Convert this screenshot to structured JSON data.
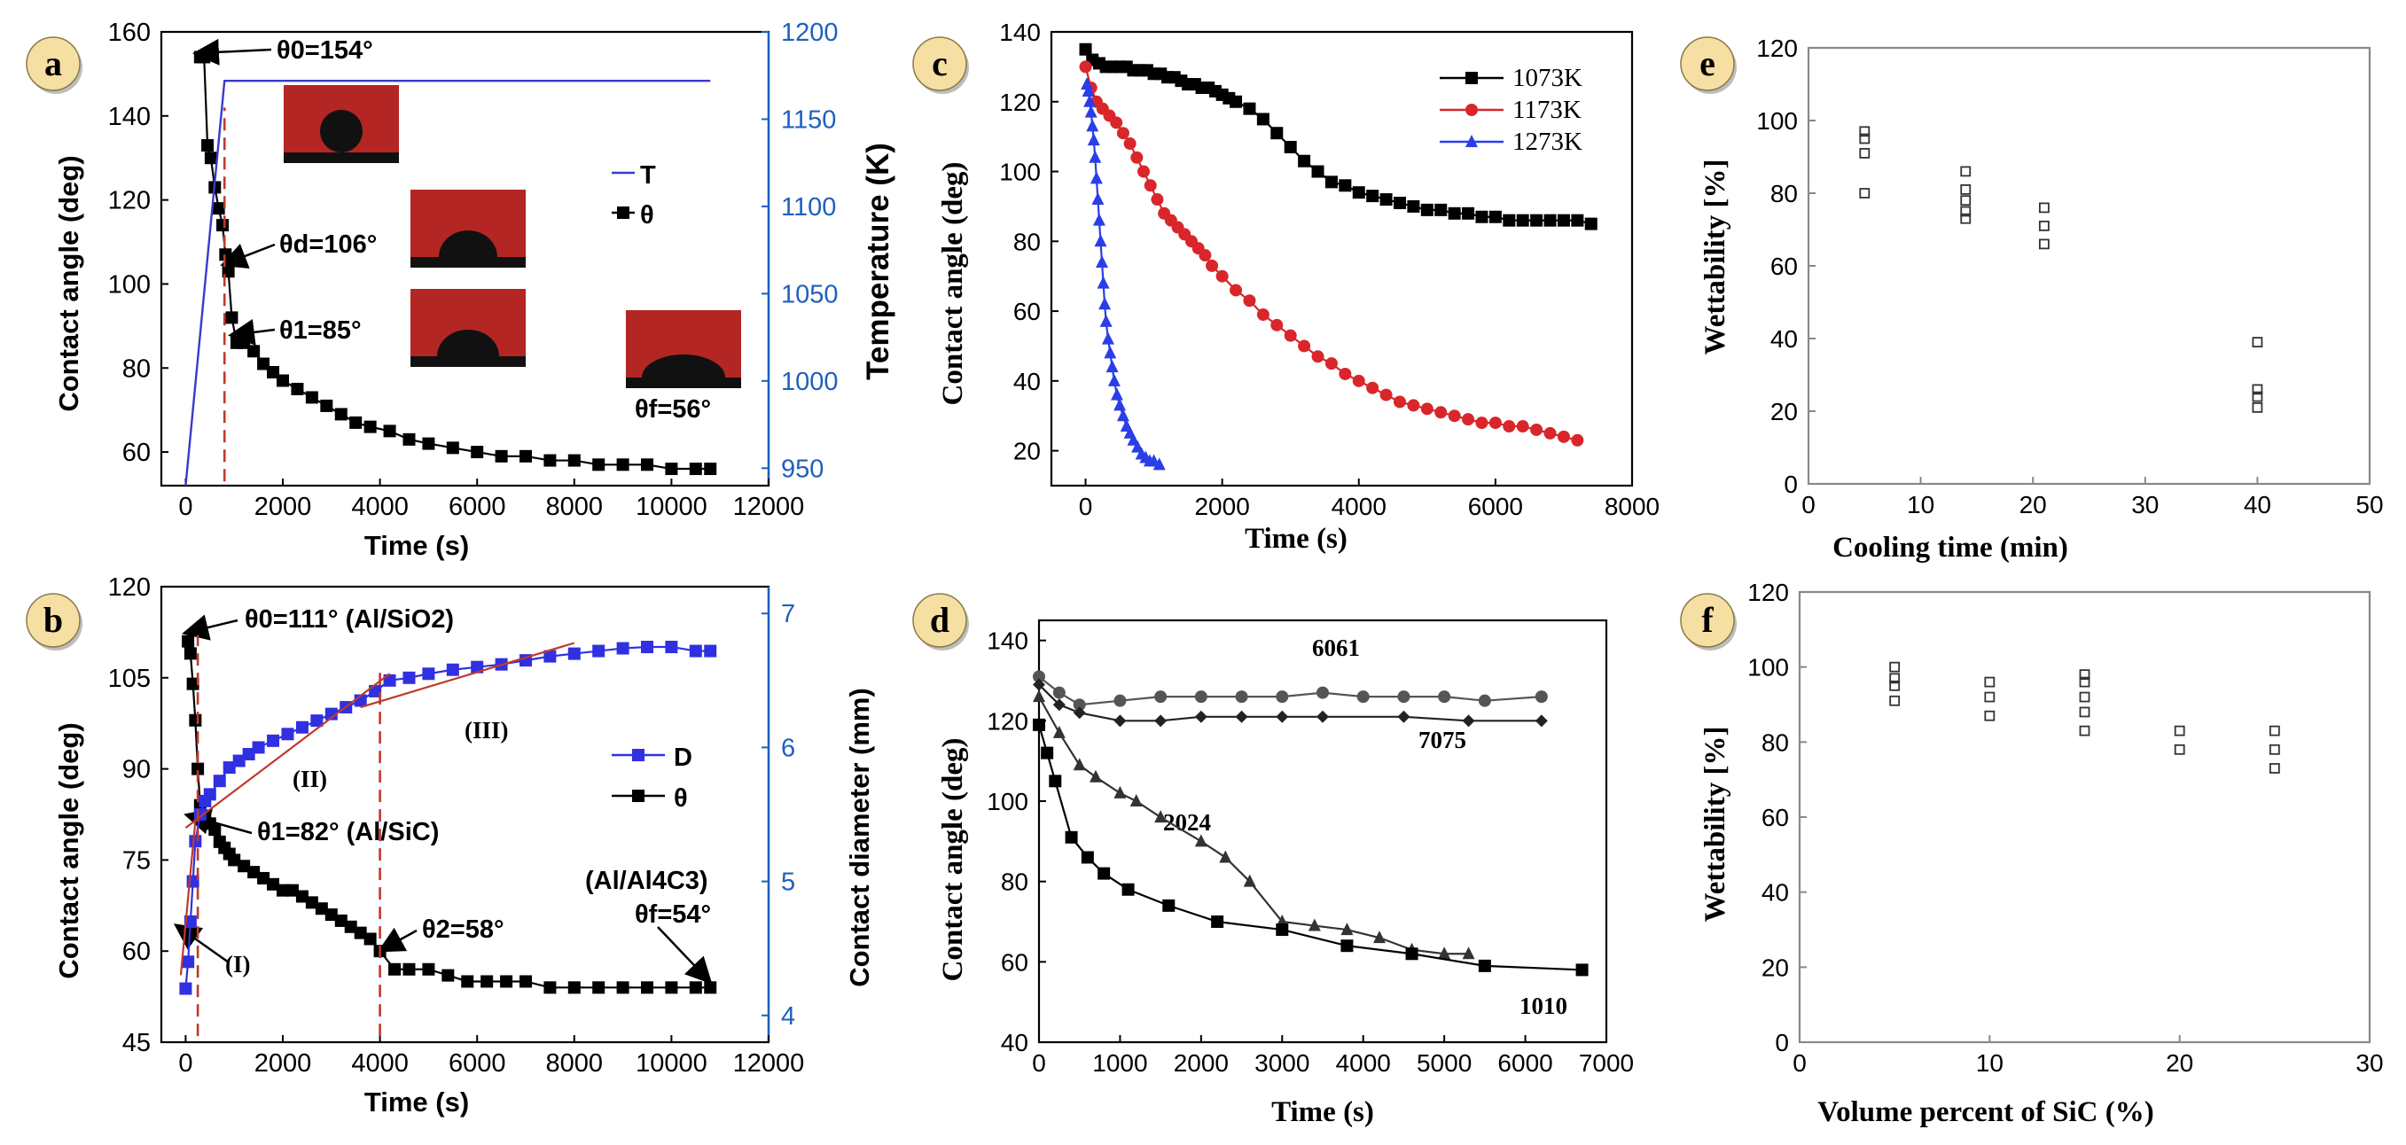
{
  "chart_data": [
    {
      "id": "a",
      "badge": "a",
      "type": "line",
      "xlabel": "Time (s)",
      "ylabel": "Contact angle (deg)",
      "y2label": "Temperature (K)",
      "xlim": [
        -500,
        12000
      ],
      "xticks": [
        0,
        2000,
        4000,
        6000,
        8000,
        10000,
        12000
      ],
      "ylim": [
        52,
        160
      ],
      "yticks": [
        60,
        80,
        100,
        120,
        140,
        160
      ],
      "y2lim": [
        940,
        1200
      ],
      "y2ticks": [
        950,
        1000,
        1050,
        1100,
        1150,
        1200
      ],
      "series": [
        {
          "name": "θ",
          "axis": "left",
          "marker": "square",
          "color": "#000000",
          "x": [
            300,
            380,
            450,
            520,
            600,
            680,
            760,
            820,
            880,
            950,
            1050,
            1200,
            1400,
            1600,
            1800,
            2000,
            2300,
            2600,
            2900,
            3200,
            3500,
            3800,
            4200,
            4600,
            5000,
            5500,
            6000,
            6500,
            7000,
            7500,
            8000,
            8500,
            9000,
            9500,
            10000,
            10500,
            10800
          ],
          "y": [
            154,
            154,
            133,
            130,
            123,
            118,
            114,
            107,
            103,
            92,
            86,
            86,
            84,
            81,
            79,
            77,
            75,
            73,
            71,
            69,
            67,
            66,
            65,
            63,
            62,
            61,
            60,
            59,
            59,
            58,
            58,
            57,
            57,
            57,
            56,
            56,
            56
          ]
        },
        {
          "name": "T",
          "axis": "right",
          "marker": "none",
          "color": "#3a3acb",
          "x": [
            0,
            800,
            10800
          ],
          "y": [
            940,
            1172,
            1172
          ]
        }
      ],
      "legend": [
        "T",
        "θ"
      ],
      "annotations": [
        "θ0=154°",
        "θd=106°",
        "θ1=85°",
        "θf=56°"
      ]
    },
    {
      "id": "b",
      "badge": "b",
      "type": "line",
      "xlabel": "Time (s)",
      "ylabel": "Contact angle (deg)",
      "y2label": "Contact diameter (mm)",
      "xlim": [
        -500,
        12000
      ],
      "xticks": [
        0,
        2000,
        4000,
        6000,
        8000,
        10000,
        12000
      ],
      "ylim": [
        45,
        120
      ],
      "yticks": [
        45,
        60,
        75,
        90,
        105,
        120
      ],
      "y2lim": [
        3.8,
        7.2
      ],
      "y2ticks": [
        4,
        5,
        6,
        7
      ],
      "series": [
        {
          "name": "θ",
          "axis": "left",
          "marker": "square",
          "color": "#000000",
          "x": [
            50,
            100,
            150,
            200,
            250,
            300,
            400,
            500,
            600,
            700,
            800,
            900,
            1000,
            1200,
            1400,
            1600,
            1800,
            2000,
            2200,
            2400,
            2600,
            2800,
            3000,
            3200,
            3400,
            3600,
            3800,
            4000,
            4300,
            4600,
            5000,
            5400,
            5800,
            6200,
            6600,
            7000,
            7500,
            8000,
            8500,
            9000,
            9500,
            10000,
            10500,
            10800
          ],
          "y": [
            111,
            109,
            104,
            98,
            90,
            84,
            82,
            81,
            80,
            78,
            77,
            76,
            75,
            74,
            73,
            72,
            71,
            70,
            70,
            69,
            68,
            67,
            66,
            65,
            64,
            63,
            62,
            60,
            57,
            57,
            57,
            56,
            55,
            55,
            55,
            55,
            54,
            54,
            54,
            54,
            54,
            54,
            54,
            54
          ]
        },
        {
          "name": "D",
          "axis": "right",
          "marker": "square",
          "color": "#3030e0",
          "x": [
            0,
            50,
            100,
            150,
            200,
            300,
            400,
            500,
            700,
            900,
            1100,
            1300,
            1500,
            1800,
            2100,
            2400,
            2700,
            3000,
            3300,
            3600,
            3900,
            4200,
            4600,
            5000,
            5500,
            6000,
            6500,
            7000,
            7500,
            8000,
            8500,
            9000,
            9500,
            10000,
            10500,
            10800
          ],
          "y": [
            4.2,
            4.4,
            4.7,
            5.0,
            5.3,
            5.5,
            5.6,
            5.65,
            5.75,
            5.85,
            5.9,
            5.95,
            6.0,
            6.05,
            6.1,
            6.15,
            6.2,
            6.25,
            6.3,
            6.35,
            6.42,
            6.5,
            6.52,
            6.55,
            6.58,
            6.6,
            6.62,
            6.65,
            6.68,
            6.7,
            6.72,
            6.74,
            6.75,
            6.75,
            6.72,
            6.72
          ]
        }
      ],
      "legend": [
        "D",
        "θ"
      ],
      "annotations": [
        "θ0=111° (Al/SiO2)",
        "θ1=82° (Al/SiC)",
        "θ2=58°",
        "(Al/Al4C3)",
        "θf=54°",
        "(I)",
        "(II)",
        "(III)"
      ]
    },
    {
      "id": "c",
      "badge": "c",
      "type": "line",
      "xlabel": "Time (s)",
      "ylabel": "Contact angle (deg)",
      "xlim": [
        -500,
        8000
      ],
      "xticks": [
        0,
        2000,
        4000,
        6000,
        8000
      ],
      "ylim": [
        10,
        140
      ],
      "yticks": [
        20,
        40,
        60,
        80,
        100,
        120,
        140
      ],
      "series": [
        {
          "name": "1073K",
          "marker": "square",
          "color": "#000000",
          "x": [
            0,
            100,
            200,
            300,
            400,
            500,
            600,
            700,
            800,
            900,
            1000,
            1100,
            1200,
            1300,
            1400,
            1500,
            1600,
            1700,
            1800,
            1900,
            2000,
            2100,
            2200,
            2400,
            2600,
            2800,
            3000,
            3200,
            3400,
            3600,
            3800,
            4000,
            4200,
            4400,
            4600,
            4800,
            5000,
            5200,
            5400,
            5600,
            5800,
            6000,
            6200,
            6400,
            6600,
            6800,
            7000,
            7200,
            7400
          ],
          "y": [
            135,
            132,
            131,
            130,
            130,
            130,
            130,
            129,
            129,
            129,
            128,
            128,
            127,
            127,
            126,
            125,
            125,
            124,
            124,
            123,
            122,
            121,
            120,
            118,
            115,
            111,
            107,
            103,
            100,
            97,
            96,
            94,
            93,
            92,
            91,
            90,
            89,
            89,
            88,
            88,
            87,
            87,
            86,
            86,
            86,
            86,
            86,
            86,
            85
          ]
        },
        {
          "name": "1173K",
          "marker": "circle",
          "color": "#d9262a",
          "x": [
            0,
            80,
            160,
            250,
            350,
            450,
            550,
            650,
            750,
            850,
            950,
            1050,
            1150,
            1250,
            1350,
            1450,
            1550,
            1650,
            1750,
            1850,
            2000,
            2200,
            2400,
            2600,
            2800,
            3000,
            3200,
            3400,
            3600,
            3800,
            4000,
            4200,
            4400,
            4600,
            4800,
            5000,
            5200,
            5400,
            5600,
            5800,
            6000,
            6200,
            6400,
            6600,
            6800,
            7000,
            7200
          ],
          "y": [
            130,
            124,
            120,
            118,
            116,
            114,
            111,
            108,
            104,
            100,
            96,
            92,
            88,
            86,
            84,
            82,
            80,
            78,
            76,
            73,
            70,
            66,
            63,
            59,
            56,
            53,
            50,
            47,
            45,
            42,
            40,
            38,
            36,
            34,
            33,
            32,
            31,
            30,
            29,
            28,
            28,
            27,
            27,
            26,
            25,
            24,
            23
          ]
        },
        {
          "name": "1273K",
          "marker": "triangle",
          "color": "#2a3ee8",
          "x": [
            20,
            40,
            60,
            80,
            100,
            120,
            140,
            160,
            180,
            200,
            220,
            240,
            260,
            280,
            300,
            330,
            360,
            390,
            420,
            460,
            500,
            550,
            600,
            650,
            700,
            760,
            820,
            880,
            940,
            1000,
            1080
          ],
          "y": [
            125,
            123,
            120,
            117,
            113,
            109,
            104,
            98,
            92,
            86,
            80,
            74,
            68,
            62,
            57,
            52,
            48,
            44,
            40,
            36,
            33,
            30,
            27,
            25,
            23,
            21,
            19,
            18,
            17,
            17,
            16
          ]
        }
      ],
      "legend": [
        "1073K",
        "1173K",
        "1273K"
      ]
    },
    {
      "id": "d",
      "badge": "d",
      "type": "line",
      "xlabel": "Time (s)",
      "ylabel": "Contact angle (deg)",
      "xlim": [
        0,
        7000
      ],
      "xticks": [
        0,
        1000,
        2000,
        3000,
        4000,
        5000,
        6000,
        7000
      ],
      "ylim": [
        40,
        145
      ],
      "yticks": [
        40,
        60,
        80,
        100,
        120,
        140
      ],
      "series": [
        {
          "name": "6061",
          "marker": "circle",
          "color": "#555555",
          "x": [
            0,
            250,
            500,
            1000,
            1500,
            2000,
            2500,
            3000,
            3500,
            4000,
            4500,
            5000,
            5500,
            6200
          ],
          "y": [
            131,
            127,
            124,
            125,
            126,
            126,
            126,
            126,
            127,
            126,
            126,
            126,
            125,
            126
          ]
        },
        {
          "name": "7075",
          "marker": "diamond",
          "color": "#222222",
          "x": [
            0,
            250,
            500,
            1000,
            1500,
            2000,
            2500,
            3000,
            3500,
            4500,
            5300,
            6200
          ],
          "y": [
            129,
            124,
            122,
            120,
            120,
            121,
            121,
            121,
            121,
            121,
            120,
            120
          ]
        },
        {
          "name": "2024",
          "marker": "triangle",
          "color": "#333333",
          "x": [
            0,
            250,
            500,
            700,
            1000,
            1200,
            1500,
            2000,
            2300,
            2600,
            3000,
            3400,
            3800,
            4200,
            4600,
            5000,
            5300
          ],
          "y": [
            126,
            117,
            109,
            106,
            102,
            100,
            96,
            90,
            86,
            80,
            70,
            69,
            68,
            66,
            63,
            62,
            62
          ]
        },
        {
          "name": "1010",
          "marker": "square",
          "color": "#000000",
          "x": [
            0,
            100,
            200,
            400,
            600,
            800,
            1100,
            1600,
            2200,
            3000,
            3800,
            4600,
            5500,
            6700
          ],
          "y": [
            119,
            112,
            105,
            91,
            86,
            82,
            78,
            74,
            70,
            68,
            64,
            62,
            59,
            58
          ]
        }
      ],
      "labels": [
        "6061",
        "7075",
        "2024",
        "1010"
      ]
    },
    {
      "id": "e",
      "badge": "e",
      "type": "scatter",
      "xlabel": "Cooling time (min)",
      "ylabel": "Wettability [%]",
      "xlim": [
        0,
        50
      ],
      "xticks": [
        0,
        10,
        20,
        30,
        40,
        50
      ],
      "ylim": [
        0,
        120
      ],
      "yticks": [
        0,
        20,
        40,
        60,
        80,
        100,
        120
      ],
      "series": [
        {
          "name": "points",
          "marker": "open-square",
          "color": "#333333",
          "x": [
            5,
            5,
            5,
            5,
            14,
            14,
            14,
            14,
            14,
            21,
            21,
            21,
            40,
            40,
            40,
            40
          ],
          "y": [
            97,
            95,
            91,
            80,
            86,
            81,
            78,
            75,
            73,
            76,
            71,
            66,
            39,
            26,
            24,
            21
          ]
        }
      ]
    },
    {
      "id": "f",
      "badge": "f",
      "type": "scatter",
      "xlabel": "Volume percent of SiC (%)",
      "ylabel": "Wettability [%]",
      "xlim": [
        0,
        30
      ],
      "xticks": [
        0,
        10,
        20,
        30
      ],
      "ylim": [
        0,
        120
      ],
      "yticks": [
        0,
        20,
        40,
        60,
        80,
        100,
        120
      ],
      "series": [
        {
          "name": "points",
          "marker": "open-square",
          "color": "#333333",
          "x": [
            5,
            5,
            5,
            5,
            10,
            10,
            10,
            15,
            15,
            15,
            15,
            15,
            20,
            20,
            25,
            25,
            25
          ],
          "y": [
            100,
            97,
            95,
            91,
            96,
            92,
            87,
            98,
            96,
            92,
            88,
            83,
            83,
            78,
            83,
            78,
            73
          ]
        }
      ]
    }
  ]
}
